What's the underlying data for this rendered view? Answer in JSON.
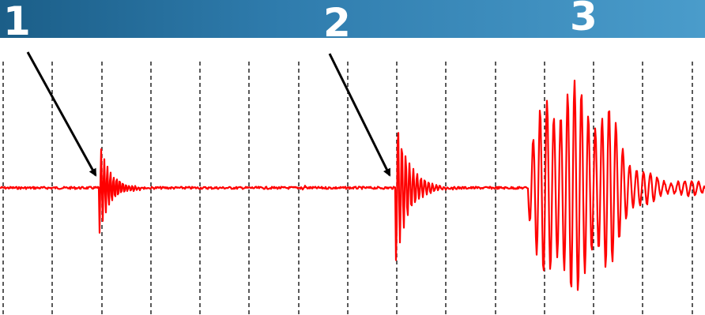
{
  "markers": [
    {
      "label": "1"
    },
    {
      "label": "2"
    },
    {
      "label": "3"
    }
  ],
  "colors": {
    "header_gradient_start": "#1b5e88",
    "header_gradient_end": "#4a9ccb",
    "signal": "#ff0000",
    "gridline": "#000000",
    "arrow": "#000000",
    "marker_text": "#ffffff"
  },
  "signal": {
    "type": "seismogram",
    "events": [
      {
        "marker": "1",
        "amplitude": "small"
      },
      {
        "marker": "2",
        "amplitude": "medium"
      },
      {
        "marker": "3",
        "amplitude": "large"
      }
    ]
  }
}
